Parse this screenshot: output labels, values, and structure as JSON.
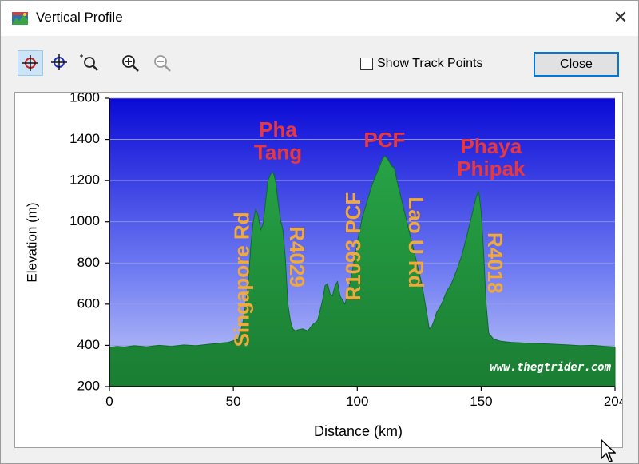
{
  "window": {
    "title": "Vertical Profile",
    "app_icon": "profile-app-icon",
    "close_icon": "close-x-icon"
  },
  "toolbar": {
    "tools": [
      {
        "name": "select-point-tool",
        "icon": "crosshair-red-icon",
        "active": true
      },
      {
        "name": "move-point-tool",
        "icon": "crosshair-blue-icon",
        "active": false
      },
      {
        "name": "zoom-rect-tool",
        "icon": "zoom-rectangle-icon",
        "active": false
      },
      {
        "name": "zoom-in-tool",
        "icon": "zoom-in-icon",
        "active": false
      },
      {
        "name": "zoom-out-tool",
        "icon": "zoom-out-icon",
        "active": false,
        "disabled": true
      }
    ],
    "show_track_points_label": "Show Track Points",
    "show_track_points_checked": false,
    "close_label": "Close"
  },
  "chart_data": {
    "type": "area",
    "xlabel": "Distance   (km)",
    "ylabel": "Elevation (m)",
    "xlim": [
      0,
      204
    ],
    "ylim": [
      200,
      1600
    ],
    "x_ticks": [
      0,
      50,
      100,
      150,
      204
    ],
    "y_ticks": [
      200,
      400,
      600,
      800,
      1000,
      1200,
      1400,
      1600
    ],
    "grid": true,
    "background": "blue-gradient",
    "fill_color": "#1f9a3c",
    "watermark": "www.thegtrider.com",
    "series": [
      {
        "x": [
          0,
          3,
          6,
          10,
          15,
          20,
          25,
          30,
          35,
          40,
          44,
          48,
          52,
          54,
          56,
          57,
          58,
          59,
          60,
          61,
          62,
          63,
          64,
          65,
          66,
          67,
          68,
          69,
          70,
          71,
          72,
          73,
          74,
          75,
          76,
          78,
          80,
          82,
          84,
          86,
          87,
          88,
          89,
          90,
          91,
          92,
          93,
          94,
          95,
          96,
          97,
          98,
          100,
          102,
          104,
          106,
          108,
          110,
          111,
          112,
          113,
          114,
          115,
          116,
          117,
          118,
          119,
          120,
          122,
          124,
          126,
          128,
          129,
          130,
          131,
          132,
          134,
          136,
          138,
          140,
          142,
          144,
          146,
          148,
          149,
          150,
          151,
          152,
          153,
          155,
          158,
          162,
          166,
          170,
          175,
          180,
          185,
          190,
          195,
          200,
          204
        ],
        "y": [
          390,
          395,
          392,
          398,
          393,
          400,
          395,
          402,
          398,
          405,
          410,
          415,
          430,
          520,
          700,
          880,
          1000,
          1060,
          1030,
          960,
          990,
          1100,
          1200,
          1230,
          1240,
          1200,
          1100,
          1010,
          960,
          820,
          600,
          520,
          480,
          470,
          475,
          480,
          470,
          500,
          520,
          620,
          690,
          700,
          650,
          640,
          690,
          710,
          640,
          620,
          600,
          640,
          700,
          760,
          900,
          1020,
          1100,
          1180,
          1240,
          1300,
          1320,
          1310,
          1290,
          1270,
          1260,
          1200,
          1150,
          1100,
          1050,
          1000,
          900,
          800,
          700,
          560,
          480,
          490,
          520,
          560,
          600,
          660,
          700,
          760,
          830,
          920,
          1020,
          1120,
          1150,
          1050,
          850,
          600,
          460,
          430,
          420,
          415,
          412,
          410,
          408,
          405,
          402,
          398,
          400,
          395,
          392
        ]
      }
    ],
    "annotations": [
      {
        "text": "Singapore Rd",
        "color": "#f2a93b",
        "x": 54,
        "y": 720,
        "rotation": -90
      },
      {
        "text": "Pha",
        "color": "#e8383d",
        "x": 68,
        "y": 1440,
        "rotation": 0
      },
      {
        "text": "Tang",
        "color": "#e8383d",
        "x": 68,
        "y": 1330,
        "rotation": 0
      },
      {
        "text": "R4029",
        "color": "#f2a93b",
        "x": 75,
        "y": 830,
        "rotation": 90
      },
      {
        "text": "R1093 PCF",
        "color": "#f2a93b",
        "x": 99,
        "y": 880,
        "rotation": -90
      },
      {
        "text": "PCF",
        "color": "#e8383d",
        "x": 111,
        "y": 1390,
        "rotation": 0
      },
      {
        "text": "Lao U Rd",
        "color": "#f2a93b",
        "x": 123,
        "y": 900,
        "rotation": 90
      },
      {
        "text": "Phaya",
        "color": "#e8383d",
        "x": 154,
        "y": 1360,
        "rotation": 0
      },
      {
        "text": "Phipak",
        "color": "#e8383d",
        "x": 154,
        "y": 1250,
        "rotation": 0
      },
      {
        "text": "R4018",
        "color": "#f2a93b",
        "x": 155,
        "y": 800,
        "rotation": 90
      }
    ]
  }
}
